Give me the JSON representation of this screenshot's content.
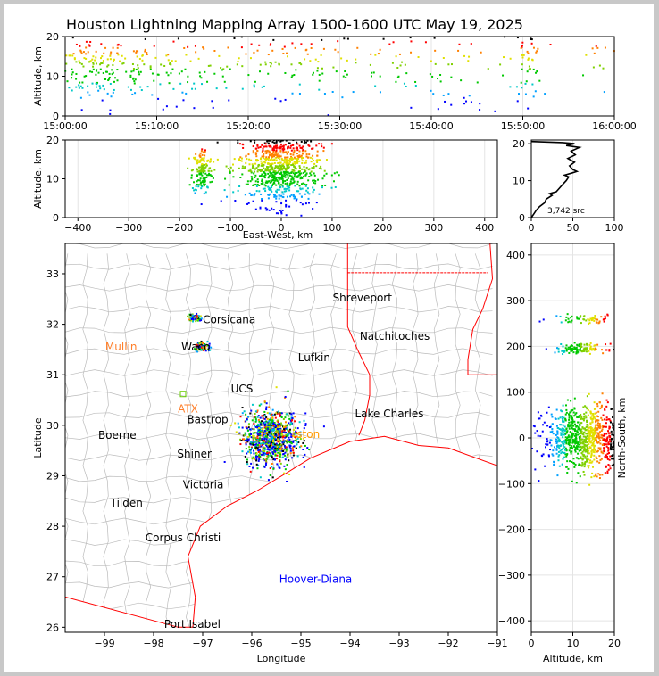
{
  "title": "Houston Lightning Mapping Array 1500-1600 UTC May 19, 2025",
  "chart_data": [
    {
      "id": "time_altitude",
      "type": "scatter",
      "ylabel": "Altitude, km",
      "xlabel": "",
      "ylim": [
        0,
        20
      ],
      "yticks": [
        0,
        10,
        20
      ],
      "xticks": [
        "15:00:00",
        "15:10:00",
        "15:20:00",
        "15:30:00",
        "15:40:00",
        "15:50:00",
        "16:00:00"
      ],
      "xlim_minutes": [
        0,
        60
      ],
      "clusters": [
        {
          "t": 2.5,
          "t_spread": 2.2,
          "alt": 12,
          "alt_spread": 4,
          "n": 140
        },
        {
          "t": 8,
          "t_spread": 3,
          "alt": 12,
          "alt_spread": 5,
          "n": 90
        },
        {
          "t": 14,
          "t_spread": 3,
          "alt": 13,
          "alt_spread": 5,
          "n": 60
        },
        {
          "t": 22,
          "t_spread": 3,
          "alt": 13,
          "alt_spread": 5,
          "n": 70
        },
        {
          "t": 28,
          "t_spread": 2.5,
          "alt": 13,
          "alt_spread": 5,
          "n": 45
        },
        {
          "t": 37,
          "t_spread": 3.5,
          "alt": 12,
          "alt_spread": 6,
          "n": 55
        },
        {
          "t": 44,
          "t_spread": 3,
          "alt": 12,
          "alt_spread": 6,
          "n": 40
        },
        {
          "t": 50.5,
          "t_spread": 0.8,
          "alt": 14,
          "alt_spread": 5,
          "n": 60
        },
        {
          "t": 58,
          "t_spread": 1.5,
          "alt": 15,
          "alt_spread": 4,
          "n": 15
        }
      ]
    },
    {
      "id": "ew_altitude",
      "type": "scatter",
      "xlabel": "East-West, km",
      "ylabel": "Altitude, km",
      "xlim": [
        -425,
        425
      ],
      "ylim": [
        0,
        20
      ],
      "xticks": [
        -400,
        -300,
        -200,
        -100,
        0,
        100,
        200,
        300,
        400
      ],
      "yticks": [
        0,
        10,
        20
      ],
      "clusters": [
        {
          "x": -155,
          "x_spread": 10,
          "alt": 12,
          "alt_spread": 3,
          "n": 160
        },
        {
          "x": -5,
          "x_spread": 40,
          "alt": 13,
          "alt_spread": 5,
          "n": 900
        }
      ]
    },
    {
      "id": "altitude_histogram",
      "type": "line",
      "ylim": [
        0,
        21
      ],
      "xlim": [
        0,
        100
      ],
      "xticks": [
        0,
        50,
        100
      ],
      "yticks": [
        0,
        10,
        20
      ],
      "annotation": "3,742 src",
      "profile": [
        [
          0,
          0
        ],
        [
          3,
          1
        ],
        [
          6,
          2
        ],
        [
          10,
          3
        ],
        [
          16,
          4
        ],
        [
          18,
          5
        ],
        [
          25,
          6
        ],
        [
          22,
          6.5
        ],
        [
          30,
          7
        ],
        [
          34,
          8
        ],
        [
          38,
          9
        ],
        [
          42,
          10
        ],
        [
          45,
          11
        ],
        [
          40,
          11.5
        ],
        [
          48,
          12
        ],
        [
          55,
          12.5
        ],
        [
          50,
          13
        ],
        [
          46,
          14
        ],
        [
          52,
          15
        ],
        [
          44,
          16
        ],
        [
          53,
          17
        ],
        [
          48,
          18
        ],
        [
          58,
          19
        ],
        [
          42,
          19.5
        ],
        [
          52,
          20
        ],
        [
          38,
          20.3
        ],
        [
          0,
          20.6
        ]
      ]
    },
    {
      "id": "plan_view",
      "type": "scatter",
      "xlabel": "Longitude",
      "ylabel": "Latitude",
      "xlim": [
        -99.8,
        -91
      ],
      "ylim": [
        25.9,
        33.6
      ],
      "xticks": [
        -99,
        -98,
        -97,
        -96,
        -95,
        -94,
        -93,
        -92,
        -91
      ],
      "yticks": [
        26,
        27,
        28,
        29,
        30,
        31,
        32,
        33
      ],
      "clusters": [
        {
          "lon": -95.6,
          "lon_spread": 0.28,
          "lat": 29.75,
          "lat_spread": 0.28,
          "n": 900
        },
        {
          "lon": -97.0,
          "lon_spread": 0.08,
          "lat": 31.55,
          "lat_spread": 0.04,
          "n": 80
        },
        {
          "lon": -97.15,
          "lon_spread": 0.08,
          "lat": 32.13,
          "lat_spread": 0.04,
          "n": 60
        }
      ],
      "places": [
        {
          "name": "Shreveport",
          "lon": -93.75,
          "lat": 32.52,
          "color": "#000000"
        },
        {
          "name": "Corsicana",
          "lon": -96.46,
          "lat": 32.09,
          "color": "#000000"
        },
        {
          "name": "Natchitoches",
          "lon": -93.09,
          "lat": 31.76,
          "color": "#000000"
        },
        {
          "name": "Mullin",
          "lon": -98.66,
          "lat": 31.55,
          "color": "#ff7f2a"
        },
        {
          "name": "Waco",
          "lon": -97.14,
          "lat": 31.55,
          "color": "#000000"
        },
        {
          "name": "Lufkin",
          "lon": -94.73,
          "lat": 31.34,
          "color": "#000000"
        },
        {
          "name": "UCS",
          "lon": -96.2,
          "lat": 30.72,
          "color": "#000000"
        },
        {
          "name": "ATX",
          "lon": -97.3,
          "lat": 30.32,
          "color": "#ff7f2a"
        },
        {
          "name": "Bastrop",
          "lon": -96.9,
          "lat": 30.11,
          "color": "#000000"
        },
        {
          "name": "Lake Charles",
          "lon": -93.2,
          "lat": 30.23,
          "color": "#000000"
        },
        {
          "name": "Boerne",
          "lon": -98.74,
          "lat": 29.8,
          "color": "#000000"
        },
        {
          "name": "ston",
          "lon": -94.85,
          "lat": 29.82,
          "color": "#ff9900"
        },
        {
          "name": "Shiner",
          "lon": -97.17,
          "lat": 29.43,
          "color": "#000000"
        },
        {
          "name": "Victoria",
          "lon": -96.99,
          "lat": 28.82,
          "color": "#000000"
        },
        {
          "name": "Tilden",
          "lon": -98.55,
          "lat": 28.46,
          "color": "#000000"
        },
        {
          "name": "Corpus Christi",
          "lon": -97.4,
          "lat": 27.77,
          "color": "#000000"
        },
        {
          "name": "Hoover-Diana",
          "lon": -94.7,
          "lat": 26.95,
          "color": "#0000ff"
        },
        {
          "name": "Port Isabel",
          "lon": -97.21,
          "lat": 26.06,
          "color": "#000000"
        }
      ]
    },
    {
      "id": "altitude_ns",
      "type": "scatter",
      "xlabel": "Altitude, km",
      "ylabel": "North-South, km",
      "xlim": [
        0,
        20
      ],
      "ylim": [
        -425,
        425
      ],
      "xticks": [
        0,
        10,
        20
      ],
      "yticks": [
        -400,
        -300,
        -200,
        -100,
        0,
        100,
        200,
        300,
        400
      ],
      "clusters": [
        {
          "ns": 260,
          "ns_spread": 5,
          "alt": 13,
          "alt_spread": 4,
          "n": 60
        },
        {
          "ns": 195,
          "ns_spread": 5,
          "alt": 12,
          "alt_spread": 3,
          "n": 120
        },
        {
          "ns": 0,
          "ns_spread": 35,
          "alt": 13,
          "alt_spread": 5,
          "n": 900
        }
      ]
    }
  ],
  "colors": {
    "palette": [
      "#0000ff",
      "#0000ff",
      "#0000ff",
      "#00a0ff",
      "#00c8c8",
      "#00c800",
      "#00c800",
      "#7fd000",
      "#e0e000",
      "#ff8000",
      "#ff0000",
      "#000000"
    ],
    "coast": "#ff0000",
    "county": "#bbbbbb",
    "grid": "#e4e4e4"
  }
}
